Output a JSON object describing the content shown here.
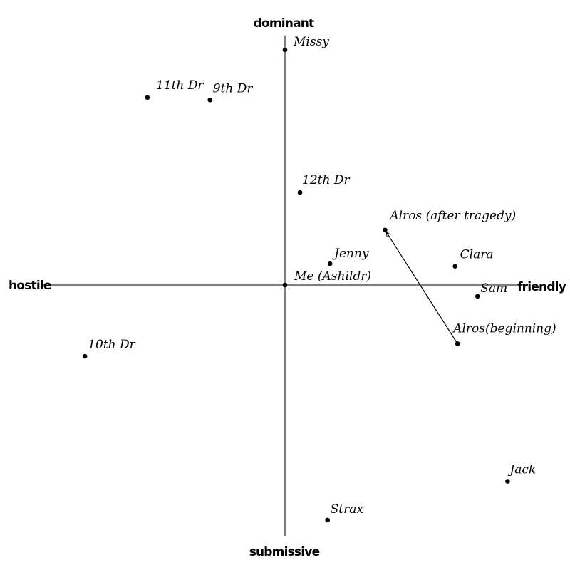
{
  "chart_data": {
    "type": "scatter",
    "title": "",
    "axes": {
      "x_negative_label": "hostile",
      "x_positive_label": "friendly",
      "y_positive_label": "dominant",
      "y_negative_label": "submissive",
      "xlim": [
        -10,
        10
      ],
      "ylim": [
        -10,
        10
      ],
      "grid": false
    },
    "points": [
      {
        "label": "Missy",
        "x": 0.0,
        "y": 9.4
      },
      {
        "label": "11th Dr",
        "x": -5.5,
        "y": 7.5
      },
      {
        "label": "9th Dr",
        "x": -3.0,
        "y": 7.4
      },
      {
        "label": "12th Dr",
        "x": 0.6,
        "y": 3.7
      },
      {
        "label": "Alros (after tragedy)",
        "x": 4.0,
        "y": 2.2
      },
      {
        "label": "Jenny",
        "x": 1.8,
        "y": 0.85
      },
      {
        "label": "Clara",
        "x": 6.8,
        "y": 0.75
      },
      {
        "label": "Me (Ashildr)",
        "x": 0.0,
        "y": 0.0
      },
      {
        "label": "Sam",
        "x": 7.7,
        "y": -0.45
      },
      {
        "label": "Alros(beginning)",
        "x": 6.9,
        "y": -2.35
      },
      {
        "label": "10th Dr",
        "x": -8.0,
        "y": -2.85
      },
      {
        "label": "Jack",
        "x": 8.9,
        "y": -7.85
      },
      {
        "label": "Strax",
        "x": 1.7,
        "y": -9.4
      }
    ],
    "arrows": [
      {
        "from": "Alros(beginning)",
        "to": "Alros (after tragedy)"
      }
    ]
  }
}
